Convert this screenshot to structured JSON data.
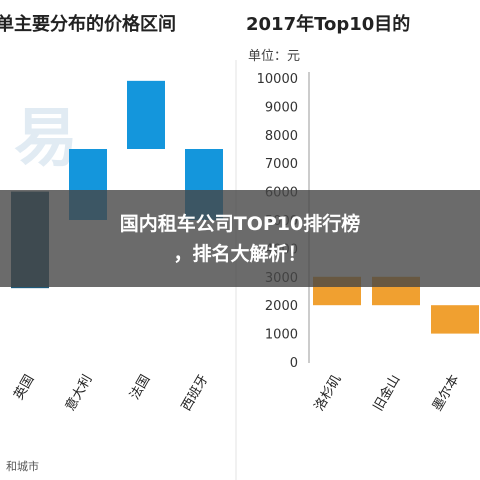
{
  "overlay": {
    "line1": "国内租车公司TOP10排行榜",
    "line2": "，排名大解析！"
  },
  "watermark": "易",
  "source_text": "和城市",
  "colors": {
    "left_bars": "#1496dc",
    "left_bar_dark": "#1e5a7a",
    "right_bars": "#f0a030",
    "axis": "#999999"
  },
  "chart_data": [
    {
      "type": "bar",
      "title": "单主要分布的价格区间",
      "categories": [
        "英国",
        "意大利",
        "法国",
        "西班牙"
      ],
      "series": [
        {
          "ranges": [
            [
              2600,
              6000
            ],
            [
              5000,
              7500
            ],
            [
              7500,
              9900
            ],
            [
              5000,
              7500
            ]
          ]
        }
      ],
      "ylim": [
        0,
        10000
      ]
    },
    {
      "type": "bar",
      "title": "2017年Top10目的",
      "unit_label": "单位：元",
      "categories": [
        "洛杉矶",
        "旧金山",
        "墨尔本"
      ],
      "series": [
        {
          "ranges": [
            [
              2000,
              3000
            ],
            [
              2000,
              3000
            ],
            [
              1000,
              2000
            ]
          ]
        }
      ],
      "ylim": [
        0,
        10000
      ],
      "yticks": [
        "0",
        "1000",
        "2000",
        "3000",
        "4000",
        "5000",
        "6000",
        "7000",
        "8000",
        "9000",
        "10000"
      ]
    }
  ]
}
